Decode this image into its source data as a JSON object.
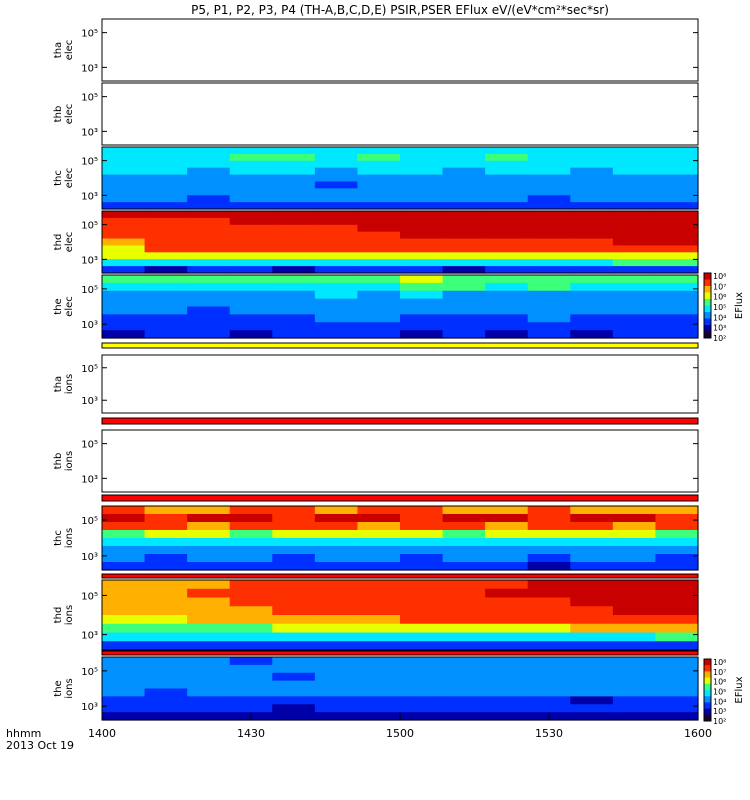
{
  "title": "P5, P1, P2, P3, P4 (TH-A,B,C,D,E) PSIR,PSER EFlux eV/(eV*cm²*sec*sr)",
  "time_axis": {
    "unit_label": "hhmm",
    "date_label": "2013 Oct 19",
    "ticks": [
      "1400",
      "1430",
      "1500",
      "1530",
      "1600"
    ]
  },
  "colorbars": [
    {
      "label": "EFlux",
      "tick_labels": [
        "10⁸",
        "10⁷",
        "10⁶",
        "10⁵",
        "10⁴",
        "10³",
        "10²"
      ]
    },
    {
      "label": "EFlux",
      "tick_labels": [
        "10⁸",
        "10⁷",
        "10⁶",
        "10⁵",
        "10⁴",
        "10³",
        "10²"
      ]
    }
  ],
  "colors": {
    "colormap": [
      "#1a0030",
      "#0000a8",
      "#0030ff",
      "#0090ff",
      "#00e8ff",
      "#3cff7a",
      "#e8ff00",
      "#ffb000",
      "#ff3000",
      "#c80000"
    ],
    "fill_red": "#ff0000",
    "fill_yellow": "#ffff00"
  },
  "chart_data": {
    "type": "heatmap",
    "title": "P5, P1, P2, P3, P4 (TH-A,B,C,D,E) PSIR,PSER EFlux eV/(eV*cm²*sec*sr)",
    "x_ticks": [
      "1400",
      "1430",
      "1500",
      "1530",
      "1600"
    ],
    "panels": [
      {
        "name": "tha_elec",
        "ylabel": [
          "tha",
          "elec"
        ],
        "yticks": [
          "10⁵",
          "10³"
        ],
        "empty": true
      },
      {
        "name": "thb_elec",
        "ylabel": [
          "thb",
          "elec"
        ],
        "yticks": [
          "10⁵",
          "10³"
        ],
        "empty": true
      },
      {
        "name": "thc_elec",
        "ylabel": [
          "thc",
          "elec"
        ],
        "yticks": [
          "10⁵",
          "10³"
        ],
        "grid": [
          [
            4,
            4,
            4,
            4,
            4,
            4,
            4,
            4,
            4,
            4,
            4,
            4,
            4,
            4
          ],
          [
            4,
            4,
            4,
            5,
            5,
            4,
            5,
            4,
            4,
            5,
            4,
            4,
            4,
            4
          ],
          [
            4,
            4,
            4,
            4,
            4,
            4,
            4,
            4,
            4,
            4,
            4,
            4,
            4,
            4
          ],
          [
            4,
            4,
            3,
            4,
            4,
            3,
            4,
            4,
            3,
            4,
            4,
            3,
            4,
            4
          ],
          [
            3,
            3,
            3,
            3,
            3,
            3,
            3,
            3,
            3,
            3,
            3,
            3,
            3,
            3
          ],
          [
            3,
            3,
            3,
            3,
            3,
            2,
            3,
            3,
            3,
            3,
            3,
            3,
            3,
            3
          ],
          [
            3,
            3,
            3,
            3,
            3,
            3,
            3,
            3,
            3,
            3,
            3,
            3,
            3,
            3
          ],
          [
            3,
            3,
            2,
            3,
            3,
            3,
            3,
            3,
            3,
            3,
            2,
            3,
            3,
            3
          ],
          [
            2,
            2,
            2,
            2,
            2,
            2,
            2,
            2,
            2,
            2,
            2,
            2,
            2,
            2
          ]
        ]
      },
      {
        "name": "thd_elec",
        "ylabel": [
          "thd",
          "elec"
        ],
        "yticks": [
          "10⁵",
          "10³"
        ],
        "grid": [
          [
            9,
            9,
            9,
            9,
            9,
            9,
            9,
            9,
            9,
            9,
            9,
            9,
            9,
            9
          ],
          [
            8,
            8,
            8,
            9,
            9,
            9,
            9,
            9,
            9,
            9,
            9,
            9,
            9,
            9
          ],
          [
            8,
            8,
            8,
            8,
            8,
            8,
            9,
            9,
            9,
            9,
            9,
            9,
            9,
            9
          ],
          [
            8,
            8,
            8,
            8,
            8,
            8,
            8,
            9,
            9,
            9,
            9,
            9,
            9,
            9
          ],
          [
            7,
            8,
            8,
            8,
            8,
            8,
            8,
            8,
            8,
            8,
            8,
            8,
            9,
            9
          ],
          [
            6,
            8,
            8,
            8,
            8,
            8,
            8,
            8,
            8,
            8,
            8,
            8,
            8,
            8
          ],
          [
            6,
            6,
            6,
            6,
            6,
            6,
            6,
            6,
            6,
            6,
            6,
            6,
            6,
            6
          ],
          [
            4,
            4,
            4,
            4,
            4,
            4,
            4,
            4,
            4,
            4,
            4,
            4,
            5,
            5
          ],
          [
            2,
            1,
            2,
            2,
            1,
            2,
            2,
            2,
            1,
            2,
            2,
            2,
            2,
            2
          ]
        ]
      },
      {
        "name": "the_elec",
        "ylabel": [
          "the",
          "elec"
        ],
        "yticks": [
          "10⁵",
          "10³"
        ],
        "grid": [
          [
            5,
            5,
            5,
            5,
            5,
            5,
            5,
            6,
            5,
            5,
            5,
            5,
            5,
            5
          ],
          [
            4,
            4,
            4,
            4,
            4,
            4,
            4,
            5,
            5,
            4,
            5,
            4,
            4,
            4
          ],
          [
            3,
            3,
            3,
            3,
            3,
            4,
            3,
            4,
            3,
            3,
            3,
            3,
            3,
            3
          ],
          [
            3,
            3,
            3,
            3,
            3,
            3,
            3,
            3,
            3,
            3,
            3,
            3,
            3,
            3
          ],
          [
            3,
            3,
            2,
            3,
            3,
            3,
            3,
            3,
            3,
            3,
            3,
            3,
            3,
            3
          ],
          [
            2,
            2,
            2,
            2,
            2,
            3,
            3,
            2,
            2,
            2,
            3,
            2,
            2,
            2
          ],
          [
            2,
            2,
            2,
            2,
            2,
            2,
            2,
            2,
            2,
            2,
            2,
            2,
            2,
            2
          ],
          [
            1,
            2,
            2,
            1,
            2,
            2,
            2,
            1,
            2,
            1,
            2,
            1,
            2,
            2
          ]
        ]
      },
      {
        "name": "tha_ions",
        "ylabel": [
          "tha",
          "ions"
        ],
        "yticks": [
          "10⁵",
          "10³"
        ],
        "empty": true
      },
      {
        "name": "thb_ions",
        "ylabel": [
          "thb",
          "ions"
        ],
        "yticks": [
          "10⁵",
          "10³"
        ],
        "empty": true
      },
      {
        "name": "thc_ions",
        "ylabel": [
          "thc",
          "ions"
        ],
        "yticks": [
          "10⁵",
          "10³"
        ],
        "grid": [
          [
            8,
            7,
            7,
            8,
            8,
            7,
            8,
            8,
            7,
            7,
            8,
            7,
            7,
            7
          ],
          [
            9,
            8,
            9,
            9,
            8,
            9,
            9,
            8,
            9,
            9,
            8,
            9,
            9,
            8
          ],
          [
            8,
            8,
            7,
            8,
            8,
            8,
            7,
            8,
            8,
            7,
            8,
            8,
            7,
            8
          ],
          [
            5,
            6,
            6,
            5,
            6,
            6,
            6,
            6,
            5,
            6,
            6,
            6,
            6,
            5
          ],
          [
            4,
            4,
            4,
            4,
            4,
            4,
            4,
            4,
            4,
            4,
            4,
            4,
            4,
            4
          ],
          [
            3,
            3,
            3,
            3,
            3,
            3,
            3,
            3,
            3,
            3,
            3,
            3,
            3,
            3
          ],
          [
            3,
            2,
            3,
            3,
            2,
            3,
            3,
            2,
            3,
            3,
            2,
            3,
            3,
            2
          ],
          [
            2,
            2,
            2,
            2,
            2,
            2,
            2,
            2,
            2,
            2,
            1,
            2,
            2,
            2
          ]
        ]
      },
      {
        "name": "thd_ions",
        "ylabel": [
          "thd",
          "ions"
        ],
        "yticks": [
          "10⁵",
          "10³"
        ],
        "grid": [
          [
            7,
            7,
            7,
            8,
            8,
            8,
            8,
            8,
            8,
            8,
            9,
            9,
            9,
            9
          ],
          [
            7,
            7,
            8,
            8,
            8,
            8,
            8,
            8,
            8,
            9,
            9,
            9,
            9,
            9
          ],
          [
            7,
            7,
            7,
            8,
            8,
            8,
            8,
            8,
            8,
            8,
            8,
            9,
            9,
            9
          ],
          [
            7,
            7,
            7,
            7,
            8,
            8,
            8,
            8,
            8,
            8,
            8,
            8,
            9,
            9
          ],
          [
            6,
            6,
            7,
            7,
            7,
            7,
            7,
            8,
            8,
            8,
            8,
            8,
            8,
            8
          ],
          [
            5,
            5,
            5,
            5,
            6,
            6,
            6,
            6,
            6,
            6,
            6,
            7,
            7,
            7
          ],
          [
            4,
            4,
            4,
            4,
            4,
            4,
            4,
            4,
            4,
            4,
            4,
            4,
            4,
            5
          ],
          [
            2,
            2,
            2,
            2,
            2,
            2,
            2,
            2,
            2,
            2,
            2,
            2,
            2,
            2
          ]
        ]
      },
      {
        "name": "the_ions",
        "ylabel": [
          "the",
          "ions"
        ],
        "yticks": [
          "10⁵",
          "10³"
        ],
        "grid": [
          [
            3,
            3,
            3,
            2,
            3,
            3,
            3,
            3,
            3,
            3,
            3,
            3,
            3,
            3
          ],
          [
            3,
            3,
            3,
            3,
            3,
            3,
            3,
            3,
            3,
            3,
            3,
            3,
            3,
            3
          ],
          [
            3,
            3,
            3,
            3,
            2,
            3,
            3,
            3,
            3,
            3,
            3,
            3,
            3,
            3
          ],
          [
            3,
            3,
            3,
            3,
            3,
            3,
            3,
            3,
            3,
            3,
            3,
            3,
            3,
            3
          ],
          [
            3,
            2,
            3,
            3,
            3,
            3,
            3,
            3,
            3,
            3,
            3,
            3,
            3,
            3
          ],
          [
            2,
            2,
            2,
            2,
            2,
            2,
            2,
            2,
            2,
            2,
            2,
            1,
            2,
            2
          ],
          [
            2,
            2,
            2,
            2,
            1,
            2,
            2,
            2,
            2,
            2,
            2,
            2,
            2,
            2
          ],
          [
            1,
            1,
            1,
            1,
            1,
            1,
            1,
            1,
            1,
            1,
            1,
            1,
            1,
            1
          ]
        ]
      }
    ]
  }
}
